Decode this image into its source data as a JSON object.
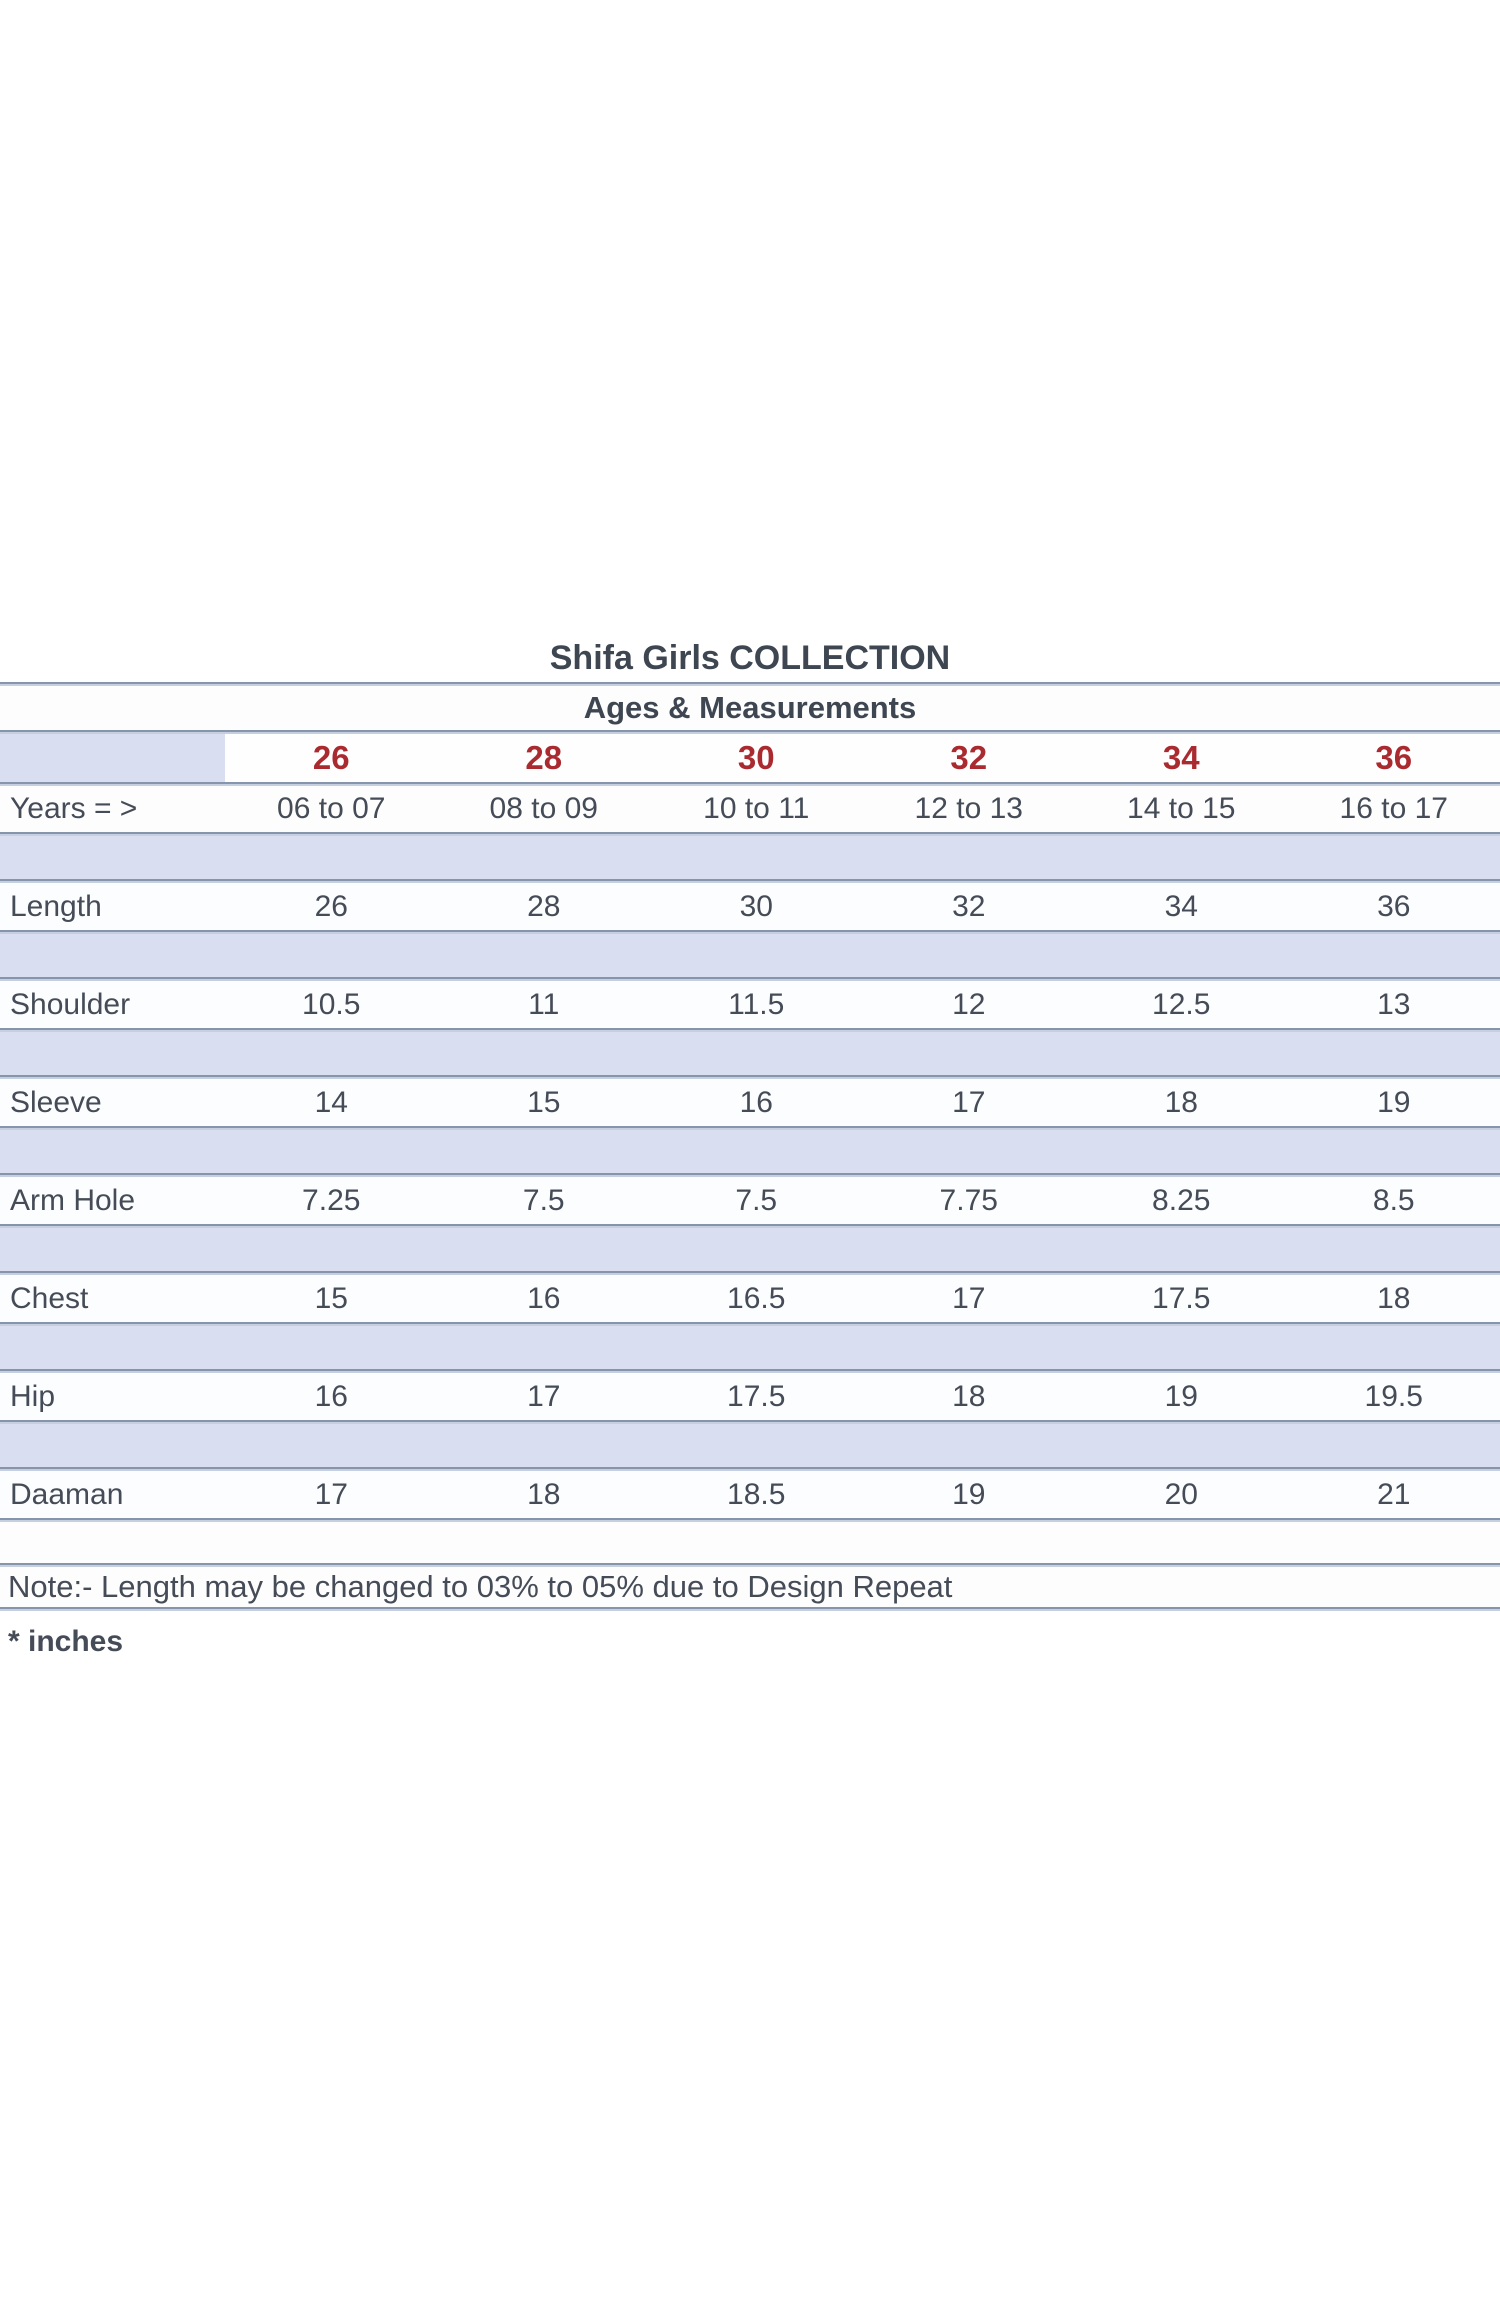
{
  "page": {
    "title": "Shifa Girls COLLECTION",
    "subtitle": "Ages & Measurements",
    "note": "Note:- Length may be changed to 03% to 05% due to Design Repeat",
    "unit_note": "* inches"
  },
  "colors": {
    "text_dark": "#454c57",
    "size_red": "#aa2b2f",
    "band_blue": "#d9dff1",
    "rule_slate": "#8695ac"
  },
  "table": {
    "sizes": [
      "26",
      "28",
      "30",
      "32",
      "34",
      "36"
    ],
    "years": {
      "label": "Years = >",
      "values": [
        "06 to 07",
        "08 to 09",
        "10 to 11",
        "12 to 13",
        "14 to 15",
        "16 to 17"
      ]
    },
    "measurements": [
      {
        "label": "Length",
        "values": [
          "26",
          "28",
          "30",
          "32",
          "34",
          "36"
        ]
      },
      {
        "label": "Shoulder",
        "values": [
          "10.5",
          "11",
          "11.5",
          "12",
          "12.5",
          "13"
        ]
      },
      {
        "label": "Sleeve",
        "values": [
          "14",
          "15",
          "16",
          "17",
          "18",
          "19"
        ]
      },
      {
        "label": "Arm Hole",
        "values": [
          "7.25",
          "7.5",
          "7.5",
          "7.75",
          "8.25",
          "8.5"
        ]
      },
      {
        "label": "Chest",
        "values": [
          "15",
          "16",
          "16.5",
          "17",
          "17.5",
          "18"
        ]
      },
      {
        "label": "Hip",
        "values": [
          "16",
          "17",
          "17.5",
          "18",
          "19",
          "19.5"
        ]
      },
      {
        "label": "Daaman",
        "values": [
          "17",
          "18",
          "18.5",
          "19",
          "20",
          "21"
        ]
      }
    ]
  }
}
